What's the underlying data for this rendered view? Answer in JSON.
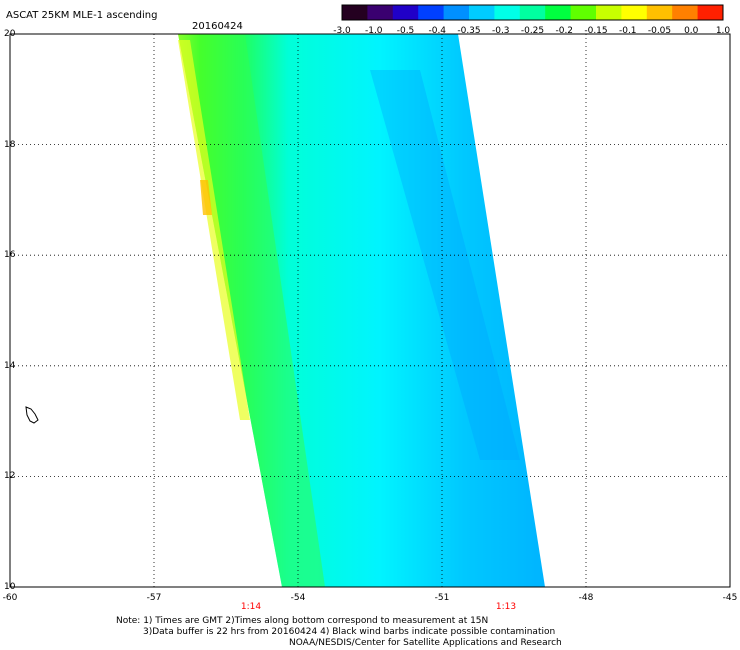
{
  "header": {
    "title": "ASCAT 25KM MLE-1 ascending",
    "date": "20160424"
  },
  "colorbar": {
    "labels": [
      "-3.0",
      "-1.0",
      "-0.5",
      "-0.4",
      "-0.35",
      "-0.3",
      "-0.25",
      "-0.2",
      "-0.15",
      "-0.1",
      "-0.05",
      "0.0",
      "1.0"
    ],
    "colors": [
      "#240020",
      "#3a0070",
      "#2000c8",
      "#0040ff",
      "#0090ff",
      "#00ccff",
      "#00ffe8",
      "#00ffa0",
      "#00ff40",
      "#60ff00",
      "#c8ff00",
      "#ffff00",
      "#ffc000",
      "#ff8000",
      "#ff2000"
    ]
  },
  "axes": {
    "lon_ticks": [
      "-60",
      "-57",
      "-54",
      "-51",
      "-48",
      "-45"
    ],
    "lat_ticks": [
      "20",
      "18",
      "16",
      "14",
      "12",
      "10"
    ],
    "lon_range": [
      -60,
      -45
    ],
    "lat_range": [
      10,
      20
    ]
  },
  "swath_times": [
    "1:14",
    "1:13"
  ],
  "notes": [
    "Note: 1) Times are GMT 2)Times along bottom correspond to measurement at 15N",
    "3)Data buffer is 22 hrs from 20160424 4) Black wind barbs indicate possible contamination",
    "NOAA/NESDIS/Center for Satellite Applications and Research"
  ]
}
